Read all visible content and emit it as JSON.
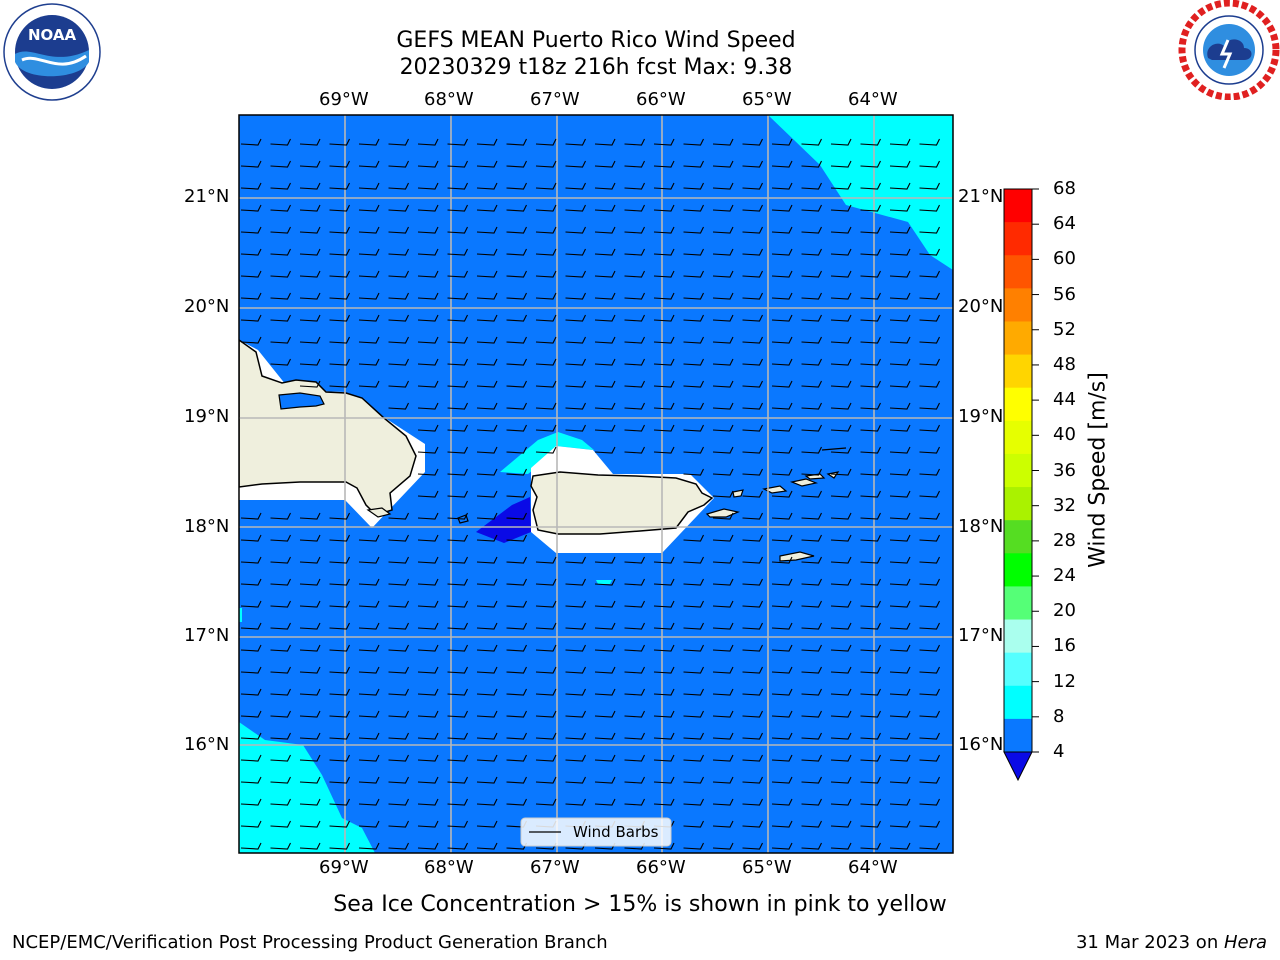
{
  "header": {
    "title_line1": "GEFS MEAN Puerto Rico Wind Speed",
    "title_line2": "20230329 t18z 216h fcst   Max: 9.38"
  },
  "logos": {
    "left": {
      "text": "NOAA",
      "ring_text": "NATIONAL OCEANIC AND ATMOSPHERIC ADMINISTRATION · U.S. DEPARTMENT OF COMMERCE"
    },
    "right": {
      "ring_text": "NATIONAL WEATHER SERVICE"
    }
  },
  "map": {
    "lon_labels": [
      "69°W",
      "68°W",
      "67°W",
      "66°W",
      "65°W",
      "64°W"
    ],
    "lat_labels": [
      "21°N",
      "20°N",
      "19°N",
      "18°N",
      "17°N",
      "16°N"
    ],
    "legend_label": "Wind Barbs",
    "colors": {
      "ocean": "#0a78ff",
      "light": "#00ffff",
      "dark": "#0a0ae6",
      "land": "#efefdd"
    }
  },
  "colorbar": {
    "label": "Wind Speed [m/s]",
    "ticks": [
      "68",
      "64",
      "60",
      "56",
      "52",
      "48",
      "44",
      "40",
      "36",
      "32",
      "28",
      "24",
      "20",
      "16",
      "12",
      "8",
      "4"
    ],
    "colors_top_to_bottom": [
      "#ff0000",
      "#ff2a00",
      "#ff5500",
      "#ff8000",
      "#ffaa00",
      "#ffd500",
      "#ffff00",
      "#e6ff00",
      "#ccff00",
      "#aaf200",
      "#55dd22",
      "#00ff00",
      "#55ff77",
      "#aaffee",
      "#55ffff",
      "#00ffff",
      "#0a78ff"
    ],
    "extend_color": "#0a0ae6"
  },
  "footer": {
    "note": "Sea Ice Concentration > 15% is shown in pink to yellow",
    "left": "NCEP/EMC/Verification Post Processing Product Generation Branch",
    "right_date": "31 Mar 2023 on ",
    "right_host": "Hera"
  }
}
